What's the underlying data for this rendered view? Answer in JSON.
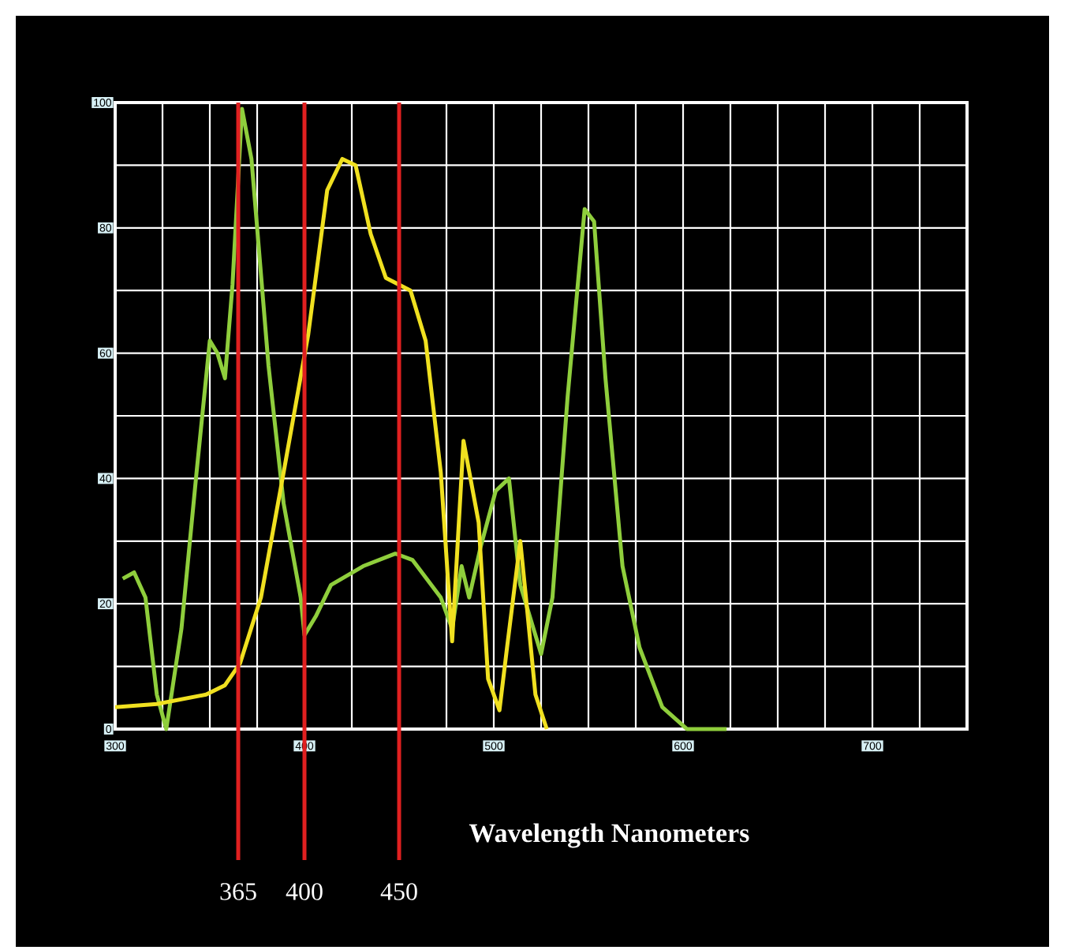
{
  "chart_data": {
    "type": "line",
    "xlabel": "Wavelength Nanometers",
    "xlim": [
      300,
      750
    ],
    "ylim": [
      0,
      100
    ],
    "xticks": [
      300,
      {
        "value": 325,
        "label": null
      },
      {
        "value": 350,
        "label": null
      },
      {
        "value": 375,
        "label": null
      },
      400,
      {
        "value": 425,
        "label": null
      },
      {
        "value": 450,
        "label": null
      },
      {
        "value": 475,
        "label": null
      },
      500,
      {
        "value": 525,
        "label": null
      },
      {
        "value": 550,
        "label": null
      },
      {
        "value": 575,
        "label": null
      },
      600,
      {
        "value": 625,
        "label": null
      },
      {
        "value": 650,
        "label": null
      },
      {
        "value": 675,
        "label": null
      },
      700,
      {
        "value": 725,
        "label": null
      }
    ],
    "yticks": [
      0,
      {
        "value": 10,
        "label": null
      },
      20,
      {
        "value": 30,
        "label": null
      },
      40,
      {
        "value": 50,
        "label": null
      },
      60,
      {
        "value": 70,
        "label": null
      },
      80,
      {
        "value": 90,
        "label": null
      },
      100
    ],
    "grid": true,
    "marker": "none",
    "line_style": "solid",
    "series": [
      {
        "color": "#8fce3c",
        "x": [
          304,
          310,
          316,
          322,
          327,
          335,
          343,
          350,
          354,
          358,
          362,
          367,
          372,
          381,
          389,
          398,
          400,
          406,
          414,
          431,
          448,
          457,
          472,
          478,
          483,
          487,
          493,
          501,
          508,
          514,
          525,
          531,
          539,
          548,
          553,
          559,
          568,
          577,
          589,
          602,
          623
        ],
        "values": [
          24,
          25,
          21,
          5.5,
          0,
          16,
          41,
          62,
          60,
          56,
          71,
          99,
          91,
          58,
          36,
          21,
          15,
          18,
          23,
          26,
          28,
          27,
          21,
          16,
          26,
          21,
          29,
          38,
          40,
          23,
          12,
          21,
          53,
          83,
          81,
          56,
          26,
          13,
          3.5,
          0,
          0
        ]
      },
      {
        "color": "#f0e020",
        "x": [
          300,
          322,
          348,
          358,
          366,
          377,
          389,
          402,
          412,
          420,
          427,
          435,
          443,
          456,
          464,
          472,
          478,
          484,
          492,
          497,
          503,
          507,
          514,
          517,
          522,
          528
        ],
        "values": [
          3.5,
          4,
          5.5,
          7,
          10.5,
          21,
          41,
          63,
          86,
          91,
          90,
          79,
          72,
          70,
          62,
          41,
          14,
          46,
          33,
          8,
          3,
          13,
          30,
          21,
          5.5,
          0
        ]
      }
    ],
    "ref_lines": [
      {
        "axis": "x",
        "value": 365,
        "label": "365",
        "color": "#e02020"
      },
      {
        "axis": "x",
        "value": 400,
        "label": "400",
        "color": "#e02020"
      },
      {
        "axis": "x",
        "value": 450,
        "label": "450",
        "color": "#e02020"
      }
    ]
  }
}
